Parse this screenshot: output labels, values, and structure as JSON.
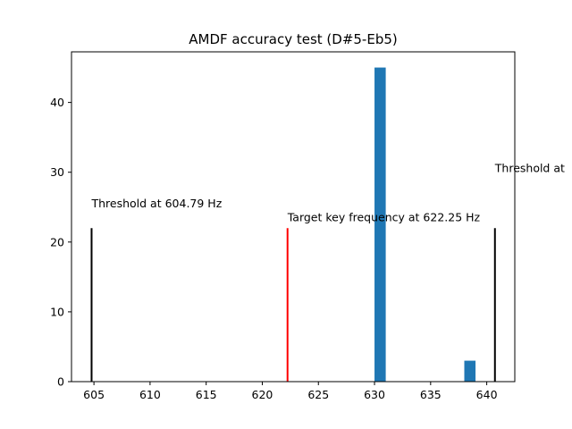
{
  "chart_data": {
    "type": "bar",
    "title": "AMDF accuracy test (D#5-Eb5)",
    "xlabel": "",
    "ylabel": "",
    "xlim": [
      603.0,
      642.5
    ],
    "ylim": [
      0,
      47.25
    ],
    "xticks": [
      605,
      610,
      615,
      620,
      625,
      630,
      635,
      640
    ],
    "yticks": [
      0,
      10,
      20,
      30,
      40
    ],
    "bar_color": "#1f77b4",
    "bars": [
      {
        "x0": 630.0,
        "x1": 631.0,
        "value": 45
      },
      {
        "x0": 638.0,
        "x1": 639.0,
        "value": 3
      }
    ],
    "vlines": [
      {
        "x": 604.79,
        "ymin": 0,
        "ymax": 22,
        "color": "#000000"
      },
      {
        "x": 622.25,
        "ymin": 0,
        "ymax": 22,
        "color": "#ff0000"
      },
      {
        "x": 640.73,
        "ymin": 0,
        "ymax": 22,
        "color": "#000000"
      }
    ],
    "annotations": [
      {
        "text": "Threshold at 604.79 Hz",
        "x": 604.79,
        "y": 25
      },
      {
        "text": "Target key frequency at 622.25 Hz",
        "x": 622.25,
        "y": 23
      },
      {
        "text": "Threshold at",
        "x": 640.73,
        "y": 30
      }
    ],
    "grid": false,
    "legend": "none"
  }
}
